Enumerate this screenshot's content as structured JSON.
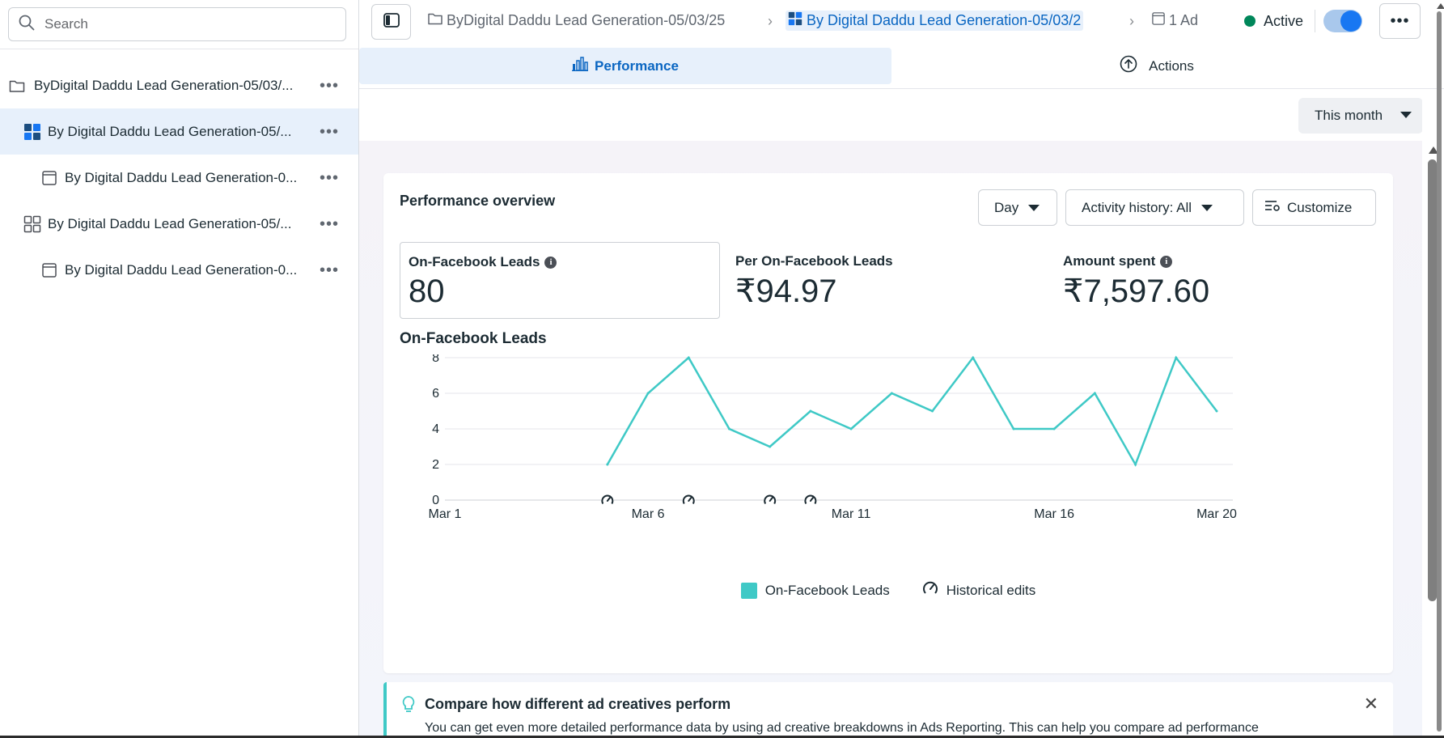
{
  "sidebar": {
    "search_placeholder": "Search",
    "items": [
      {
        "label": "ByDigital Daddu Lead Generation-05/03/...",
        "icon": "folder-icon",
        "selected": false
      },
      {
        "label": "By Digital Daddu Lead Generation-05/...",
        "icon": "ad-set-icon",
        "selected": true
      },
      {
        "label": "By Digital Daddu Lead Generation-0...",
        "icon": "ad-icon",
        "selected": false
      },
      {
        "label": "By Digital Daddu Lead Generation-05/...",
        "icon": "ad-set-outline-icon",
        "selected": false
      },
      {
        "label": "By Digital Daddu Lead Generation-0...",
        "icon": "ad-icon",
        "selected": false
      }
    ]
  },
  "topbar": {
    "breadcrumb_campaign": "ByDigital Daddu Lead Generation-05/03/25",
    "breadcrumb_adset": "By Digital Daddu Lead Generation-05/03/2",
    "breadcrumb_ad": "1 Ad",
    "status": "Active",
    "status_color": "#00875a",
    "toggle_on": true
  },
  "tabs": {
    "performance": "Performance",
    "actions": "Actions"
  },
  "date_range": "This month",
  "overview": {
    "title": "Performance overview",
    "day_button": "Day",
    "activity_button": "Activity history: All",
    "customize_button": "Customize",
    "metrics": [
      {
        "label": "On-Facebook Leads",
        "value": "80",
        "info": true
      },
      {
        "label": "Per On-Facebook Leads",
        "value": "₹94.97",
        "info": false
      },
      {
        "label": "Amount spent",
        "value": "₹7,597.60",
        "info": true
      }
    ]
  },
  "chart_data": {
    "type": "line",
    "title": "On-Facebook Leads",
    "x": [
      "Mar 5",
      "Mar 6",
      "Mar 7",
      "Mar 8",
      "Mar 9",
      "Mar 10",
      "Mar 11",
      "Mar 12",
      "Mar 13",
      "Mar 14",
      "Mar 15",
      "Mar 16",
      "Mar 17",
      "Mar 18",
      "Mar 19",
      "Mar 20"
    ],
    "series": [
      {
        "name": "On-Facebook Leads",
        "values": [
          2,
          6,
          8,
          4,
          3,
          5,
          4,
          6,
          5,
          8,
          4,
          4,
          6,
          2,
          8,
          5
        ],
        "color": "#3fc9c6"
      }
    ],
    "historical_edits": [
      "Mar 5",
      "Mar 7",
      "Mar 9",
      "Mar 10"
    ],
    "x_range": [
      "Mar 1",
      "Mar 20"
    ],
    "x_ticks": [
      "Mar 1",
      "Mar 6",
      "Mar 11",
      "Mar 16",
      "Mar 20"
    ],
    "y_ticks": [
      0,
      2,
      4,
      6,
      8
    ],
    "ylim": [
      0,
      8
    ],
    "legend": [
      "On-Facebook Leads",
      "Historical edits"
    ],
    "legend_position": "bottom",
    "grid": true
  },
  "tip": {
    "title": "Compare how different ad creatives perform",
    "body": "You can get even more detailed performance data by using ad creative breakdowns in Ads Reporting. This can help you compare ad performance"
  }
}
